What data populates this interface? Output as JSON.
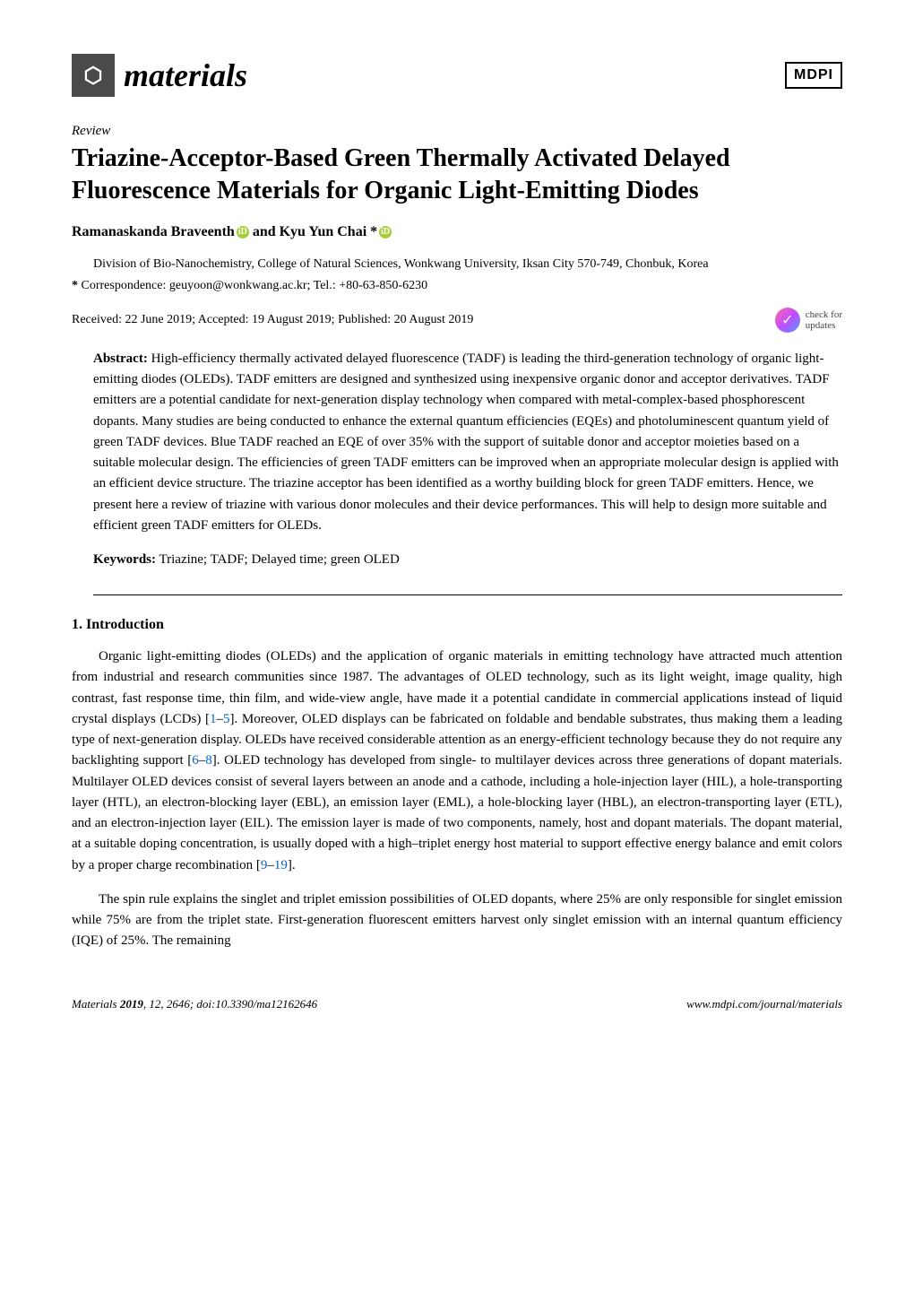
{
  "journal": {
    "logo_glyph": "⬡",
    "name": "materials",
    "publisher_logo": "MDPI"
  },
  "article": {
    "type": "Review",
    "title": "Triazine-Acceptor-Based Green Thermally Activated Delayed Fluorescence Materials for Organic Light-Emitting Diodes",
    "authors_line_prefix": "Ramanaskanda Braveenth",
    "authors_line_connector": " and ",
    "authors_line_suffix": "Kyu Yun Chai *",
    "affiliation": "Division of Bio-Nanochemistry, College of Natural Sciences, Wonkwang University, Iksan City 570-749, Chonbuk, Korea",
    "correspondence_label": "*",
    "correspondence": "Correspondence: geuyoon@wonkwang.ac.kr; Tel.: +80-63-850-6230",
    "dates": "Received: 22 June 2019; Accepted: 19 August 2019; Published: 20 August 2019",
    "check_updates_line1": "check for",
    "check_updates_line2": "updates"
  },
  "abstract": {
    "label": "Abstract:",
    "text": "High-efficiency thermally activated delayed fluorescence (TADF) is leading the third-generation technology of organic light-emitting diodes (OLEDs). TADF emitters are designed and synthesized using inexpensive organic donor and acceptor derivatives. TADF emitters are a potential candidate for next-generation display technology when compared with metal-complex-based phosphorescent dopants. Many studies are being conducted to enhance the external quantum efficiencies (EQEs) and photoluminescent quantum yield of green TADF devices. Blue TADF reached an EQE of over 35% with the support of suitable donor and acceptor moieties based on a suitable molecular design. The efficiencies of green TADF emitters can be improved when an appropriate molecular design is applied with an efficient device structure. The triazine acceptor has been identified as a worthy building block for green TADF emitters. Hence, we present here a review of triazine with various donor molecules and their device performances. This will help to design more suitable and efficient green TADF emitters for OLEDs."
  },
  "keywords": {
    "label": "Keywords:",
    "text": "Triazine; TADF; Delayed time; green OLED"
  },
  "section1": {
    "heading": "1. Introduction",
    "p1_a": "Organic light-emitting diodes (OLEDs) and the application of organic materials in emitting technology have attracted much attention from industrial and research communities since 1987. The advantages of OLED technology, such as its light weight, image quality, high contrast, fast response time, thin film, and wide-view angle, have made it a potential candidate in commercial applications instead of liquid crystal displays (LCDs) [",
    "p1_ref1": "1",
    "p1_dash1": "–",
    "p1_ref2": "5",
    "p1_b": "]. Moreover, OLED displays can be fabricated on foldable and bendable substrates, thus making them a leading type of next-generation display. OLEDs have received considerable attention as an energy-efficient technology because they do not require any backlighting support [",
    "p1_ref3": "6",
    "p1_dash2": "–",
    "p1_ref4": "8",
    "p1_c": "]. OLED technology has developed from single- to multilayer devices across three generations of dopant materials. Multilayer OLED devices consist of several layers between an anode and a cathode, including a hole-injection layer (HIL), a hole-transporting layer (HTL), an electron-blocking layer (EBL), an emission layer (EML), a hole-blocking layer (HBL), an electron-transporting layer (ETL), and an electron-injection layer (EIL). The emission layer is made of two components, namely, host and dopant materials. The dopant material, at a suitable doping concentration, is usually doped with a high–triplet energy host material to support effective energy balance and emit colors by a proper charge recombination [",
    "p1_ref5": "9",
    "p1_dash3": "–",
    "p1_ref6": "19",
    "p1_d": "].",
    "p2": "The spin rule explains the singlet and triplet emission possibilities of OLED dopants, where 25% are only responsible for singlet emission while 75% are from the triplet state. First-generation fluorescent emitters harvest only singlet emission with an internal quantum efficiency (IQE) of 25%. The remaining"
  },
  "footer": {
    "left_a": "Materials ",
    "left_b": "2019",
    "left_c": ", ",
    "left_d": "12",
    "left_e": ", 2646; doi:10.3390/ma12162646",
    "right": "www.mdpi.com/journal/materials"
  },
  "colors": {
    "link": "#0066cc",
    "orcid": "#a6ce39",
    "logo_bg": "#4a4a4a"
  }
}
